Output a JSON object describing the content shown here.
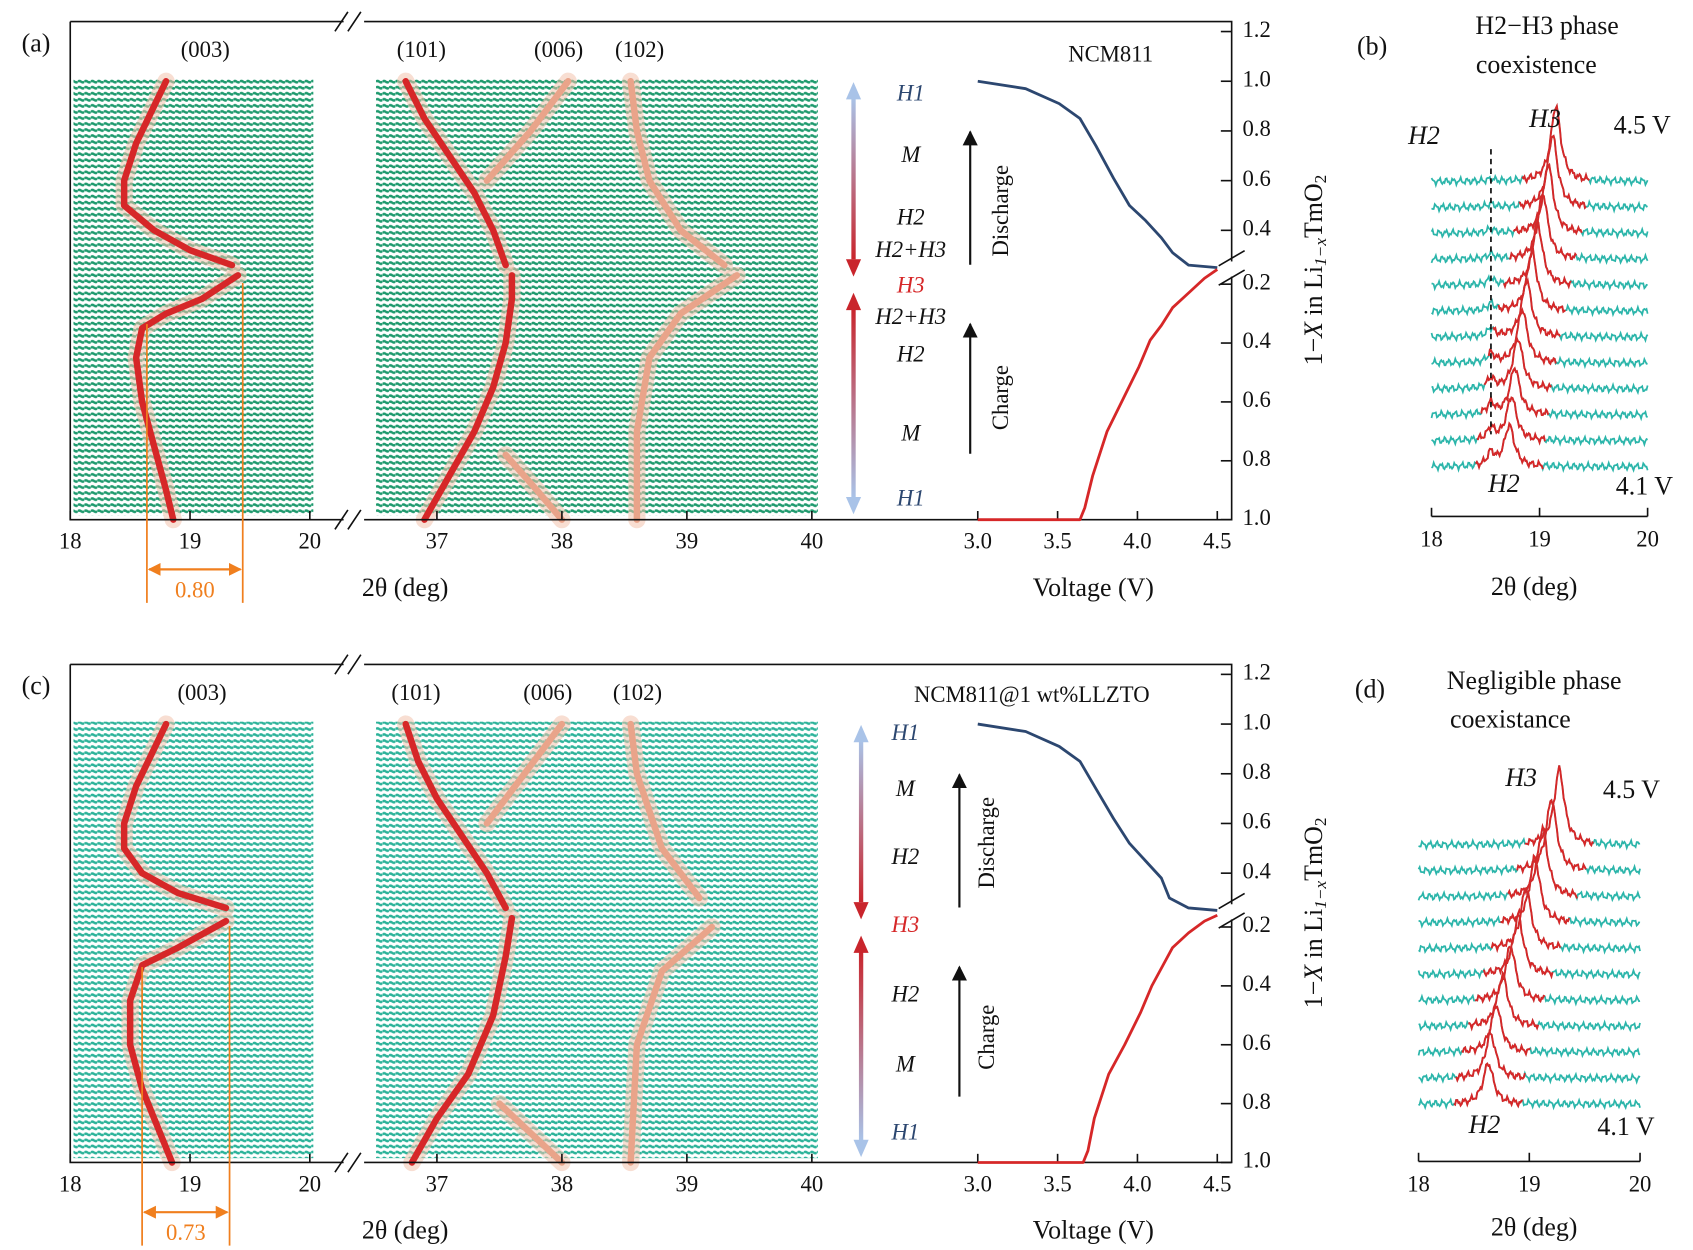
{
  "chart_data": [
    {
      "type": "xrd_operando",
      "panel_label": "(a)",
      "sample": "NCM811",
      "waterfall_color": "#1f9a6e",
      "x_segments": [
        {
          "xlim": [
            18,
            20.3
          ],
          "xticks": [
            18,
            19,
            20
          ]
        },
        {
          "xlim": [
            36.4,
            40.1
          ],
          "xticks": [
            37,
            38,
            39,
            40
          ]
        }
      ],
      "x_label": "2θ (deg)",
      "voltage_xlim": [
        3,
        4.59
      ],
      "voltage_xticks": [
        {
          "value": 3,
          "label": "3.0"
        },
        3.5,
        {
          "value": 4,
          "label": "4.0"
        },
        4.5
      ],
      "voltage_label": "Voltage (V)",
      "y_label": [
        "1−",
        "X",
        " in Li",
        "1−x",
        "TmO",
        "2"
      ],
      "discharge_ylim": [
        0.24,
        1.24
      ],
      "discharge_yticks": [
        0.4,
        0.6,
        0.8,
        {
          "value": 1,
          "label": "1.0"
        },
        1.2
      ],
      "charge_ylim": [
        0.15,
        1
      ],
      "charge_yticks": [
        0.2,
        0.4,
        0.6,
        0.8,
        {
          "value": 1,
          "label": "1.0"
        }
      ],
      "discharge_label": "Discharge",
      "charge_label": "Charge",
      "phase_labels": [
        {
          "label": "H1",
          "color": "#2c4770"
        },
        {
          "label": "M",
          "color": "#111111"
        },
        {
          "label": "H2",
          "color": "#111111"
        },
        {
          "label": "H2+H3",
          "color": "#111111"
        },
        {
          "label": "H3",
          "color": "#d62728"
        },
        {
          "label": "H2+H3",
          "color": "#111111"
        },
        {
          "label": "H2",
          "color": "#111111"
        },
        {
          "label": "M",
          "color": "#111111"
        },
        {
          "label": "H1",
          "color": "#2c4770"
        }
      ],
      "peaks": [
        {
          "name": "(003)",
          "color": "#d62728",
          "charge": {
            "x": [
              18.86,
              18.8,
              18.7,
              18.6,
              18.55,
              18.6,
              18.8,
              19.1,
              19.4
            ],
            "y": [
              1,
              0.9,
              0.75,
              0.6,
              0.45,
              0.35,
              0.3,
              0.25,
              0.17
            ]
          },
          "discharge": {
            "x": [
              19.35,
              19.0,
              18.7,
              18.45,
              18.45,
              18.55,
              18.7,
              18.8
            ],
            "y": [
              0.26,
              0.32,
              0.4,
              0.5,
              0.6,
              0.75,
              0.9,
              1
            ]
          }
        },
        {
          "name": "(101)",
          "color": "#d62728",
          "charge": {
            "x": [
              36.9,
              37.1,
              37.3,
              37.45,
              37.55,
              37.6,
              37.6
            ],
            "y": [
              1,
              0.85,
              0.7,
              0.55,
              0.4,
              0.25,
              0.17
            ]
          },
          "discharge": {
            "x": [
              37.55,
              37.45,
              37.3,
              37.1,
              36.9,
              36.75
            ],
            "y": [
              0.26,
              0.4,
              0.55,
              0.7,
              0.85,
              1
            ]
          }
        },
        {
          "name": "(006)",
          "color": "#e9a48a",
          "charge": {
            "x": [
              38.0,
              37.8,
              37.55
            ],
            "y": [
              1,
              0.9,
              0.78
            ]
          },
          "discharge": {
            "x": [
              37.4,
              37.75,
              38.05
            ],
            "y": [
              0.6,
              0.8,
              1
            ]
          }
        },
        {
          "name": "(102)",
          "color": "#e9a48a",
          "charge": {
            "x": [
              38.6,
              38.6,
              38.7,
              38.95,
              39.4
            ],
            "y": [
              1,
              0.7,
              0.45,
              0.3,
              0.17
            ]
          },
          "discharge": {
            "x": [
              39.3,
              38.95,
              38.7,
              38.6,
              38.55
            ],
            "y": [
              0.26,
              0.4,
              0.6,
              0.8,
              1
            ]
          }
        }
      ],
      "voltage_curves": [
        {
          "segment": "discharge",
          "color": "#2c4770",
          "x": [
            3.0,
            3.3,
            3.51,
            3.64,
            3.74,
            3.85,
            3.95,
            4.05,
            4.15,
            4.22,
            4.32,
            4.5
          ],
          "y": [
            1,
            0.97,
            0.91,
            0.85,
            0.74,
            0.61,
            0.5,
            0.44,
            0.37,
            0.31,
            0.26,
            0.25
          ]
        },
        {
          "segment": "charge",
          "color": "#d62728",
          "x": [
            3.0,
            3.64,
            3.67,
            3.72,
            3.81,
            3.91,
            4.01,
            4.08,
            4.15,
            4.22,
            4.32,
            4.42,
            4.5
          ],
          "y": [
            1,
            1,
            0.96,
            0.85,
            0.7,
            0.59,
            0.48,
            0.39,
            0.34,
            0.28,
            0.23,
            0.18,
            0.15
          ]
        }
      ],
      "peak_split": {
        "from": 18.64,
        "to": 19.44,
        "value": 0.8,
        "value_label": "0.80",
        "color": "#f07f1e"
      }
    },
    {
      "type": "xrd_waterfall",
      "panel_label": "(b)",
      "title": [
        "H2−H3 phase",
        "coexistence"
      ],
      "xlim": [
        18,
        20
      ],
      "xticks": [
        18,
        19,
        20
      ],
      "x_label": "2θ (deg)",
      "peak_positions": [
        18.72,
        18.74,
        18.77,
        18.8,
        18.84,
        18.88,
        18.93,
        18.98,
        19.03,
        19.08,
        19.12,
        19.15
      ],
      "top_label": "4.5 V",
      "bottom_label": "4.1 V",
      "top_phase": "H3",
      "bottom_phase": "H2",
      "secondary": {
        "label": "H2",
        "x": 18.55
      },
      "trace_color": "#2bb5aa",
      "peak_color": "#d62728"
    },
    {
      "type": "xrd_operando",
      "panel_label": "(c)",
      "sample": "NCM811@1 wt%LLZTO",
      "waterfall_color": "#2db39a",
      "x_segments": [
        {
          "xlim": [
            18,
            20.3
          ],
          "xticks": [
            18,
            19,
            20
          ]
        },
        {
          "xlim": [
            36.4,
            40.1
          ],
          "xticks": [
            37,
            38,
            39,
            40
          ]
        }
      ],
      "x_label": "2θ (deg)",
      "voltage_xlim": [
        3,
        4.59
      ],
      "voltage_xticks": [
        {
          "value": 3,
          "label": "3.0"
        },
        3.5,
        {
          "value": 4,
          "label": "4.0"
        },
        4.5
      ],
      "voltage_label": "Voltage (V)",
      "y_label": [
        "1−",
        "X",
        " in Li",
        "1−x",
        "TmO",
        "2"
      ],
      "discharge_ylim": [
        0.24,
        1.24
      ],
      "discharge_yticks": [
        0.4,
        0.6,
        0.8,
        {
          "value": 1,
          "label": "1.0"
        },
        1.2
      ],
      "charge_ylim": [
        0.15,
        1
      ],
      "charge_yticks": [
        0.2,
        0.4,
        0.6,
        0.8,
        {
          "value": 1,
          "label": "1.0"
        }
      ],
      "discharge_label": "Discharge",
      "charge_label": "Charge",
      "phase_labels": [
        {
          "label": "H1",
          "color": "#2c4770"
        },
        {
          "label": "M",
          "color": "#111111"
        },
        {
          "label": "H2",
          "color": "#111111"
        },
        {
          "label": "H3",
          "color": "#d62728"
        },
        {
          "label": "H2",
          "color": "#111111"
        },
        {
          "label": "M",
          "color": "#111111"
        },
        {
          "label": "H1",
          "color": "#2c4770"
        }
      ],
      "peaks": [
        {
          "name": "(003)",
          "color": "#d62728",
          "charge": {
            "x": [
              18.85,
              18.75,
              18.6,
              18.5,
              18.5,
              18.6,
              18.9,
              19.3
            ],
            "y": [
              1,
              0.9,
              0.75,
              0.6,
              0.45,
              0.33,
              0.27,
              0.18
            ]
          },
          "discharge": {
            "x": [
              19.3,
              18.9,
              18.6,
              18.45,
              18.45,
              18.55,
              18.7,
              18.8
            ],
            "y": [
              0.26,
              0.32,
              0.4,
              0.5,
              0.6,
              0.75,
              0.9,
              1
            ]
          }
        },
        {
          "name": "(101)",
          "color": "#d62728",
          "charge": {
            "x": [
              36.8,
              37.0,
              37.25,
              37.45,
              37.55,
              37.6
            ],
            "y": [
              1,
              0.85,
              0.7,
              0.5,
              0.3,
              0.17
            ]
          },
          "discharge": {
            "x": [
              37.55,
              37.4,
              37.2,
              37.0,
              36.85,
              36.75
            ],
            "y": [
              0.26,
              0.4,
              0.55,
              0.7,
              0.85,
              1
            ]
          }
        },
        {
          "name": "(006)",
          "color": "#e9a48a",
          "charge": {
            "x": [
              38.0,
              37.75,
              37.5
            ],
            "y": [
              1,
              0.9,
              0.8
            ]
          },
          "discharge": {
            "x": [
              37.4,
              37.7,
              38.0
            ],
            "y": [
              0.6,
              0.8,
              1
            ]
          }
        },
        {
          "name": "(102)",
          "color": "#e9a48a",
          "charge": {
            "x": [
              38.55,
              38.6,
              38.8,
              39.2
            ],
            "y": [
              1,
              0.6,
              0.35,
              0.2
            ]
          },
          "discharge": {
            "x": [
              39.1,
              38.8,
              38.6,
              38.55
            ],
            "y": [
              0.3,
              0.5,
              0.8,
              1
            ]
          }
        }
      ],
      "voltage_curves": [
        {
          "segment": "discharge",
          "color": "#2c4770",
          "x": [
            3.0,
            3.3,
            3.51,
            3.64,
            3.74,
            3.85,
            3.95,
            4.05,
            4.15,
            4.2,
            4.32,
            4.5
          ],
          "y": [
            1,
            0.97,
            0.91,
            0.85,
            0.74,
            0.62,
            0.52,
            0.45,
            0.38,
            0.3,
            0.26,
            0.25
          ]
        },
        {
          "segment": "charge",
          "color": "#d62728",
          "x": [
            3.0,
            3.66,
            3.69,
            3.73,
            3.82,
            3.92,
            4.02,
            4.09,
            4.16,
            4.22,
            4.32,
            4.42,
            4.5
          ],
          "y": [
            1,
            1,
            0.96,
            0.85,
            0.7,
            0.6,
            0.49,
            0.4,
            0.33,
            0.27,
            0.22,
            0.18,
            0.16
          ]
        }
      ],
      "peak_split": {
        "from": 18.6,
        "to": 19.33,
        "value": 0.73,
        "value_label": "0.73",
        "color": "#f07f1e"
      }
    },
    {
      "type": "xrd_waterfall",
      "panel_label": "(d)",
      "title": [
        "Negligible phase",
        "coexistance"
      ],
      "xlim": [
        18,
        20
      ],
      "xticks": [
        18,
        19,
        20
      ],
      "x_label": "2θ (deg)",
      "peak_positions": [
        18.63,
        18.65,
        18.7,
        18.76,
        18.83,
        18.9,
        18.97,
        19.05,
        19.12,
        19.2,
        19.27
      ],
      "top_label": "4.5 V",
      "bottom_label": "4.1 V",
      "top_phase": "H3",
      "bottom_phase": "H2",
      "trace_color": "#2bb5aa",
      "peak_color": "#d62728"
    }
  ]
}
